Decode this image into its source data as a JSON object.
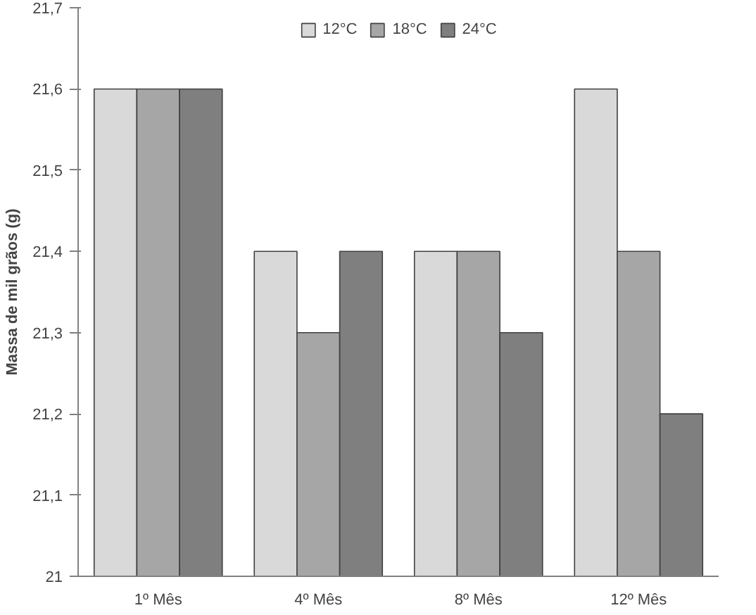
{
  "chart_data": {
    "type": "bar",
    "ylabel": "Massa de mil grãos (g)",
    "categories": [
      "1º Mês",
      "4º Mês",
      "8º Mês",
      "12º Mês"
    ],
    "series": [
      {
        "name": "12°C",
        "color": "#d9d9d9",
        "values": [
          21.6,
          21.4,
          21.4,
          21.6
        ]
      },
      {
        "name": "18°C",
        "color": "#a6a6a6",
        "values": [
          21.6,
          21.3,
          21.4,
          21.4
        ]
      },
      {
        "name": "24°C",
        "color": "#7f7f7f",
        "values": [
          21.6,
          21.4,
          21.3,
          21.2
        ]
      }
    ],
    "ylim": [
      21,
      21.7
    ],
    "yticks": [
      21,
      {
        "value": 21.1,
        "label": "21,1"
      },
      {
        "value": 21.2,
        "label": "21,2"
      },
      {
        "value": 21.3,
        "label": "21,3"
      },
      {
        "value": 21.4,
        "label": "21,4"
      },
      {
        "value": 21.5,
        "label": "21,5"
      },
      {
        "value": 21.6,
        "label": "21,6"
      },
      {
        "value": 21.7,
        "label": "21,7"
      }
    ],
    "grid": false,
    "legend": "top"
  }
}
